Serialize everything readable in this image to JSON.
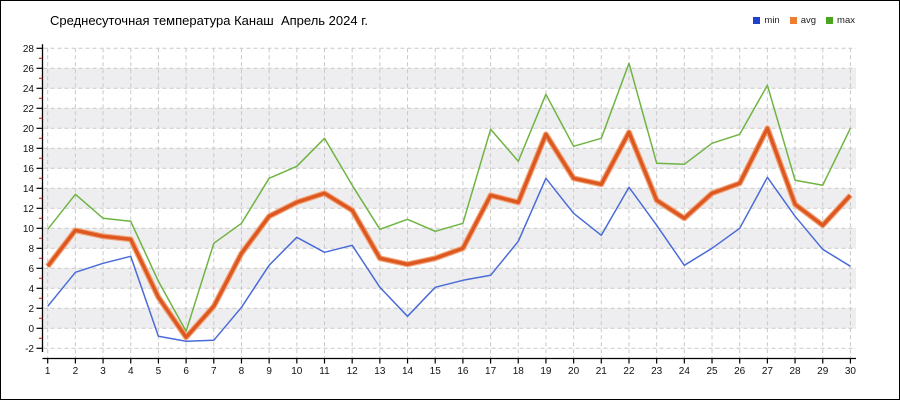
{
  "title": "Среднесуточная температура Канаш  Апрель 2024 г.",
  "legend": {
    "items": [
      {
        "label": "min",
        "color": "#2040d0"
      },
      {
        "label": "avg",
        "color": "#ed7d31"
      },
      {
        "label": "max",
        "color": "#4aa41e"
      }
    ]
  },
  "chart_data": {
    "type": "line",
    "title": "Среднесуточная температура Канаш  Апрель 2024 г.",
    "xlabel": "",
    "ylabel": "",
    "x": [
      1,
      2,
      3,
      4,
      5,
      6,
      7,
      8,
      9,
      10,
      11,
      12,
      13,
      14,
      15,
      16,
      17,
      18,
      19,
      20,
      21,
      22,
      23,
      24,
      25,
      26,
      27,
      28,
      29,
      30
    ],
    "ylim": [
      -2,
      28
    ],
    "ytick_step": 2,
    "grid": true,
    "legend_position": "top-right",
    "series": [
      {
        "name": "max",
        "color": "#6fb442",
        "width": 1.5,
        "values": [
          9.9,
          13.4,
          11.0,
          10.7,
          4.7,
          -0.3,
          8.5,
          10.5,
          15.0,
          16.2,
          19.0,
          14.3,
          9.9,
          10.9,
          9.7,
          10.5,
          19.9,
          16.7,
          23.4,
          18.2,
          19.0,
          26.5,
          16.5,
          16.4,
          18.5,
          19.4,
          24.3,
          14.8,
          14.3,
          20.0
        ]
      },
      {
        "name": "avg",
        "color": "#dd5820",
        "halo": "#f2a276",
        "width": 3.4,
        "values": [
          6.2,
          9.8,
          9.2,
          8.9,
          3.1,
          -0.9,
          2.2,
          7.5,
          11.2,
          12.6,
          13.5,
          11.8,
          7.0,
          6.4,
          7.0,
          8.0,
          13.3,
          12.6,
          19.4,
          15.0,
          14.4,
          19.6,
          12.8,
          11.0,
          13.5,
          14.5,
          20.0,
          12.4,
          10.3,
          13.3
        ]
      },
      {
        "name": "min",
        "color": "#4a6bd8",
        "width": 1.5,
        "values": [
          2.2,
          5.6,
          6.5,
          7.2,
          -0.8,
          -1.3,
          -1.2,
          2.1,
          6.3,
          9.1,
          7.6,
          8.3,
          4.1,
          1.2,
          4.1,
          4.8,
          5.3,
          8.7,
          15.0,
          11.5,
          9.3,
          14.1,
          10.3,
          6.3,
          8.0,
          10.0,
          15.1,
          11.2,
          7.9,
          6.2
        ]
      }
    ],
    "style": {
      "stripe_color": "#eeeef0",
      "grid_color": "#c9c9c9",
      "axis_color": "#000000",
      "minor_tick_color": "#cc2222",
      "label_color": "#111111"
    }
  }
}
